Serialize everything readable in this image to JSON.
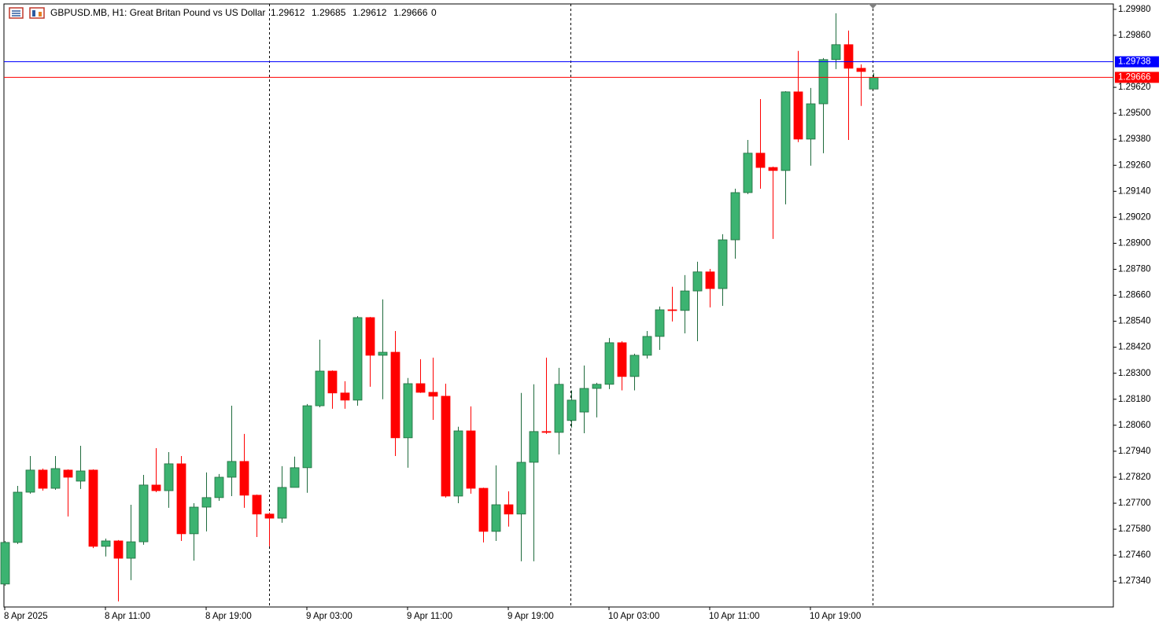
{
  "chart_data": {
    "type": "candlestick",
    "title": "GBPUSD.MB, H1:  Great Britan Pound vs US Dollar",
    "volume": 0,
    "categories": [
      "8 Apr 2025",
      null,
      null,
      null,
      null,
      null,
      null,
      null,
      "8 Apr 11:00",
      null,
      null,
      null,
      null,
      null,
      null,
      null,
      "8 Apr 19:00",
      null,
      null,
      null,
      null,
      null,
      null,
      null,
      "9 Apr 03:00",
      null,
      null,
      null,
      null,
      null,
      null,
      null,
      "9 Apr 11:00",
      null,
      null,
      null,
      null,
      null,
      null,
      null,
      "9 Apr 19:00",
      null,
      null,
      null,
      null,
      null,
      null,
      null,
      "10 Apr 03:00",
      null,
      null,
      null,
      null,
      null,
      null,
      null,
      "10 Apr 11:00",
      null,
      null,
      null,
      null,
      null,
      null,
      null,
      "10 Apr 19:00",
      null,
      null,
      null,
      null,
      null
    ],
    "open": [
      1.27327,
      1.27519,
      1.27751,
      1.27853,
      1.27769,
      1.27853,
      1.27802,
      1.27853,
      1.27501,
      1.27526,
      1.27446,
      1.27522,
      1.27784,
      1.27758,
      1.27882,
      1.27559,
      1.27682,
      1.27726,
      1.2782,
      1.27893,
      1.27737,
      1.2765,
      1.27631,
      1.27773,
      1.27864,
      1.2815,
      1.2831,
      1.28209,
      1.28176,
      1.28557,
      1.28383,
      1.28397,
      1.28002,
      1.28252,
      1.28212,
      1.28194,
      1.27733,
      1.28034,
      1.27769,
      1.2757,
      1.27693,
      1.2765,
      1.27889,
      1.28031,
      1.28027,
      1.28082,
      1.28121,
      1.2823,
      1.28249,
      1.28441,
      1.28285,
      1.28383,
      1.2847,
      1.28593,
      1.2859,
      1.2868,
      1.28768,
      1.28691,
      1.28916,
      1.29134,
      1.29316,
      1.2925,
      1.29236,
      1.29599,
      1.29381,
      1.29544,
      1.29748,
      1.29817,
      1.29708,
      1.29612
    ],
    "high": [
      1.27526,
      1.2778,
      1.27918,
      1.2786,
      1.27918,
      1.27856,
      1.27965,
      1.27856,
      1.27537,
      1.2753,
      1.27693,
      1.27831,
      1.27954,
      1.27936,
      1.27918,
      1.277,
      1.27842,
      1.27835,
      1.2815,
      1.2802,
      1.2774,
      1.27657,
      1.27871,
      1.27915,
      1.28158,
      1.28455,
      1.28313,
      1.28263,
      1.28564,
      1.2856,
      1.28641,
      1.28495,
      1.28278,
      1.28365,
      1.28372,
      1.28252,
      1.28053,
      1.28147,
      1.27772,
      1.27875,
      1.27755,
      1.28209,
      1.28249,
      1.28372,
      1.28325,
      1.28221,
      1.28336,
      1.28256,
      1.28463,
      1.28448,
      1.2839,
      1.28495,
      1.28608,
      1.28699,
      1.28753,
      1.28815,
      1.28782,
      1.28942,
      1.29152,
      1.29377,
      1.29566,
      1.29254,
      1.29602,
      1.29788,
      1.29617,
      1.29755,
      1.29962,
      1.29882,
      1.29726,
      1.29685
    ],
    "low": [
      1.27319,
      1.27512,
      1.27744,
      1.27758,
      1.27762,
      1.27639,
      1.27766,
      1.27493,
      1.27454,
      1.27247,
      1.27345,
      1.27508,
      1.27751,
      1.27679,
      1.27526,
      1.27435,
      1.2757,
      1.27711,
      1.27733,
      1.27679,
      1.27544,
      1.27501,
      1.2761,
      1.27773,
      1.27748,
      1.28143,
      1.28136,
      1.28136,
      1.2815,
      1.28238,
      1.2818,
      1.27918,
      1.27864,
      1.28209,
      1.28085,
      1.27726,
      1.277,
      1.27744,
      1.27519,
      1.27526,
      1.27592,
      1.27432,
      1.27432,
      1.2802,
      1.27925,
      1.28049,
      1.28023,
      1.28096,
      1.28227,
      1.28221,
      1.28221,
      1.28368,
      1.28408,
      1.28539,
      1.28484,
      1.28448,
      1.28604,
      1.28611,
      1.28829,
      1.29127,
      1.29152,
      1.2892,
      1.2908,
      1.29367,
      1.29258,
      1.29316,
      1.29704,
      1.29377,
      1.29534,
      1.29612
    ],
    "close": [
      1.27519,
      1.27751,
      1.27853,
      1.27769,
      1.2786,
      1.2782,
      1.27849,
      1.27501,
      1.27526,
      1.27446,
      1.27522,
      1.27784,
      1.27758,
      1.27882,
      1.27559,
      1.27682,
      1.27726,
      1.2782,
      1.27893,
      1.27737,
      1.2765,
      1.27631,
      1.27773,
      1.27864,
      1.2815,
      1.2831,
      1.28209,
      1.28176,
      1.28557,
      1.28383,
      1.28397,
      1.28002,
      1.28252,
      1.28212,
      1.28194,
      1.27733,
      1.28034,
      1.27769,
      1.2757,
      1.27693,
      1.2765,
      1.27889,
      1.28031,
      1.28027,
      1.28249,
      1.28176,
      1.2823,
      1.28249,
      1.28441,
      1.28285,
      1.28383,
      1.2847,
      1.28593,
      1.2859,
      1.2868,
      1.28768,
      1.28691,
      1.28916,
      1.29134,
      1.29316,
      1.2925,
      1.29236,
      1.29599,
      1.29381,
      1.29544,
      1.29748,
      1.29817,
      1.29708,
      1.29693,
      1.29666
    ],
    "up_color": "#3cb371",
    "down_color": "#ff0000",
    "ylim": [
      1.27221,
      1.30005
    ],
    "yticks": [
      {
        "value": 1.2734,
        "label": "1.27340"
      },
      {
        "value": 1.2746,
        "label": "1.27460"
      },
      {
        "value": 1.2758,
        "label": "1.27580"
      },
      {
        "value": 1.277,
        "label": "1.27700"
      },
      {
        "value": 1.2782,
        "label": "1.27820"
      },
      {
        "value": 1.2794,
        "label": "1.27940"
      },
      {
        "value": 1.2806,
        "label": "1.28060"
      },
      {
        "value": 1.2818,
        "label": "1.28180"
      },
      {
        "value": 1.283,
        "label": "1.28300"
      },
      {
        "value": 1.2842,
        "label": "1.28420"
      },
      {
        "value": 1.2854,
        "label": "1.28540"
      },
      {
        "value": 1.2866,
        "label": "1.28660"
      },
      {
        "value": 1.2878,
        "label": "1.28780"
      },
      {
        "value": 1.289,
        "label": "1.28900"
      },
      {
        "value": 1.2902,
        "label": "1.29020"
      },
      {
        "value": 1.2914,
        "label": "1.29140"
      },
      {
        "value": 1.2926,
        "label": "1.29260"
      },
      {
        "value": 1.2938,
        "label": "1.29380"
      },
      {
        "value": 1.295,
        "label": "1.29500"
      },
      {
        "value": 1.2962,
        "label": "1.29620"
      },
      {
        "value": 1.2986,
        "label": "1.29860"
      },
      {
        "value": 1.2998,
        "label": "1.29980"
      }
    ],
    "price_lines": [
      {
        "value": 1.29738,
        "color": "#0000ff"
      },
      {
        "value": 1.29666,
        "color": "#ff0000"
      }
    ],
    "grid": false
  }
}
